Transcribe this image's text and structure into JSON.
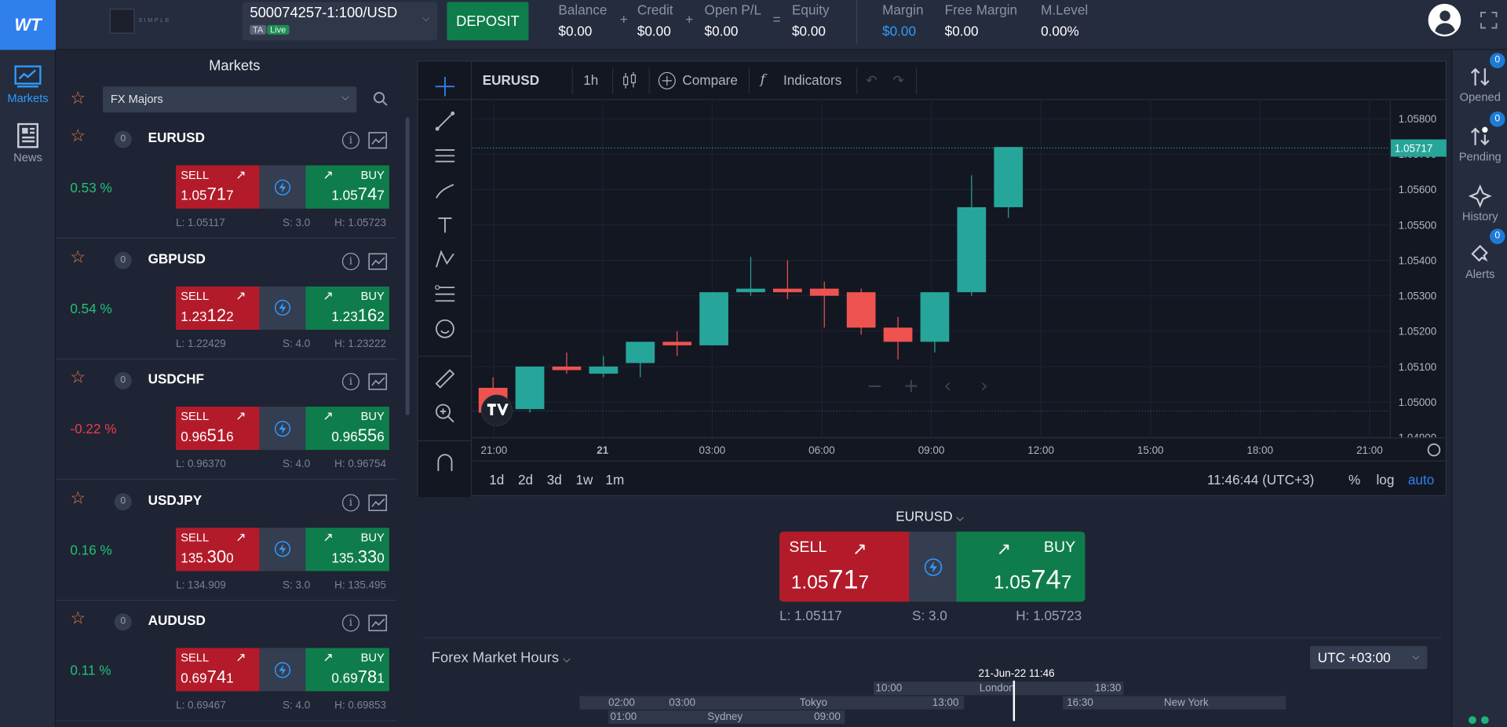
{
  "header": {
    "logo_text": "WT",
    "brand_text": "SIMPLE",
    "account": {
      "number": "500074257-1:100/USD",
      "tag_ta": "TA",
      "tag_live": "Live"
    },
    "deposit_label": "DEPOSIT",
    "stats": [
      {
        "label": "Balance",
        "value": "$0.00"
      },
      {
        "label": "Credit",
        "value": "$0.00"
      },
      {
        "label": "Open P/L",
        "value": "$0.00"
      },
      {
        "label": "Equity",
        "value": "$0.00"
      },
      {
        "label": "Margin",
        "value": "$0.00"
      },
      {
        "label": "Free Margin",
        "value": "$0.00"
      },
      {
        "label": "M.Level",
        "value": "0.00%"
      }
    ],
    "ops": [
      "+",
      "+",
      "="
    ]
  },
  "left_rail": {
    "markets_label": "Markets",
    "news_label": "News"
  },
  "markets": {
    "title": "Markets",
    "filter": "FX Majors",
    "instruments": [
      {
        "symbol": "EURUSD",
        "count": "0",
        "change": "0.53 %",
        "up": true,
        "sell_pre": "1.05",
        "sell_big": "71",
        "sell_post": "7",
        "buy_pre": "1.05",
        "buy_big": "74",
        "buy_post": "7",
        "low": "L: 1.05117",
        "spread": "S: 3.0",
        "high": "H: 1.05723"
      },
      {
        "symbol": "GBPUSD",
        "count": "0",
        "change": "0.54 %",
        "up": true,
        "sell_pre": "1.23",
        "sell_big": "12",
        "sell_post": "2",
        "buy_pre": "1.23",
        "buy_big": "16",
        "buy_post": "2",
        "low": "L: 1.22429",
        "spread": "S: 4.0",
        "high": "H: 1.23222"
      },
      {
        "symbol": "USDCHF",
        "count": "0",
        "change": "-0.22 %",
        "up": false,
        "sell_pre": "0.96",
        "sell_big": "51",
        "sell_post": "6",
        "buy_pre": "0.96",
        "buy_big": "55",
        "buy_post": "6",
        "low": "L: 0.96370",
        "spread": "S: 4.0",
        "high": "H: 0.96754"
      },
      {
        "symbol": "USDJPY",
        "count": "0",
        "change": "0.16 %",
        "up": true,
        "sell_pre": "135.",
        "sell_big": "30",
        "sell_post": "0",
        "buy_pre": "135.",
        "buy_big": "33",
        "buy_post": "0",
        "low": "L: 134.909",
        "spread": "S: 3.0",
        "high": "H: 135.495"
      },
      {
        "symbol": "AUDUSD",
        "count": "0",
        "change": "0.11 %",
        "up": true,
        "sell_pre": "0.69",
        "sell_big": "74",
        "sell_post": "1",
        "buy_pre": "0.69",
        "buy_big": "78",
        "buy_post": "1",
        "low": "L: 0.69467",
        "spread": "S: 4.0",
        "high": "H: 0.69853"
      }
    ],
    "sell_label": "SELL",
    "buy_label": "BUY"
  },
  "chart_toolbar": {
    "symbol": "EURUSD",
    "interval": "1h",
    "compare": "Compare",
    "indicators": "Indicators"
  },
  "chart_data": {
    "type": "candlestick",
    "symbol": "EURUSD",
    "interval": "1h",
    "y_ticks": [
      "1.05800",
      "1.05700",
      "1.05600",
      "1.05500",
      "1.05400",
      "1.05300",
      "1.05200",
      "1.05100",
      "1.05000",
      "1.04900"
    ],
    "ylim": [
      1.049,
      1.0585
    ],
    "x_ticks": [
      "21:00",
      "21",
      "03:00",
      "06:00",
      "09:00",
      "12:00",
      "15:00",
      "18:00",
      "21:00"
    ],
    "last_price_label": "1.05717",
    "last_price": 1.05717,
    "candles": [
      {
        "o": 1.0504,
        "h": 1.0507,
        "l": 1.0497,
        "c": 1.0497
      },
      {
        "o": 1.0498,
        "h": 1.051,
        "l": 1.0497,
        "c": 1.051
      },
      {
        "o": 1.051,
        "h": 1.0514,
        "l": 1.0508,
        "c": 1.0509
      },
      {
        "o": 1.0508,
        "h": 1.0513,
        "l": 1.0507,
        "c": 1.051
      },
      {
        "o": 1.0511,
        "h": 1.0517,
        "l": 1.0507,
        "c": 1.0517
      },
      {
        "o": 1.0517,
        "h": 1.052,
        "l": 1.0513,
        "c": 1.0516
      },
      {
        "o": 1.0516,
        "h": 1.0531,
        "l": 1.0516,
        "c": 1.0531
      },
      {
        "o": 1.0531,
        "h": 1.0541,
        "l": 1.053,
        "c": 1.0532
      },
      {
        "o": 1.0532,
        "h": 1.054,
        "l": 1.0529,
        "c": 1.0531
      },
      {
        "o": 1.0532,
        "h": 1.0534,
        "l": 1.0521,
        "c": 1.053
      },
      {
        "o": 1.0531,
        "h": 1.0532,
        "l": 1.0519,
        "c": 1.0521
      },
      {
        "o": 1.0521,
        "h": 1.0524,
        "l": 1.0512,
        "c": 1.0517
      },
      {
        "o": 1.0517,
        "h": 1.0531,
        "l": 1.0514,
        "c": 1.0531
      },
      {
        "o": 1.0531,
        "h": 1.0564,
        "l": 1.053,
        "c": 1.0555
      },
      {
        "o": 1.0555,
        "h": 1.0572,
        "l": 1.0552,
        "c": 1.0572
      }
    ]
  },
  "chart_bottom": {
    "ranges": [
      "1d",
      "2d",
      "3d",
      "1w",
      "1m"
    ],
    "clock": "11:46:44 (UTC+3)",
    "pct": "%",
    "log": "log",
    "auto": "auto"
  },
  "quick_trade": {
    "symbol": "EURUSD",
    "sell_label": "SELL",
    "buy_label": "BUY",
    "sell_pre": "1.05",
    "sell_big": "71",
    "sell_post": "7",
    "buy_pre": "1.05",
    "buy_big": "74",
    "buy_post": "7",
    "low": "L: 1.05117",
    "spread": "S: 3.0",
    "high": "H: 1.05723"
  },
  "forex_hours": {
    "title": "Forex Market Hours",
    "timezone": "UTC +03:00",
    "now": "21-Jun-22 11:46",
    "sessions": [
      {
        "name": "London",
        "open": "10:00",
        "close": "18:30"
      },
      {
        "name": "Tokyo",
        "open": "03:00",
        "close": "13:00"
      },
      {
        "name": "New York",
        "open": "16:30",
        "close": ""
      },
      {
        "name": "Sydney",
        "open": "01:00",
        "close": "09:00"
      }
    ],
    "extra_open": "02:00"
  },
  "right_rail": {
    "opened": {
      "label": "Opened",
      "badge": "0"
    },
    "pending": {
      "label": "Pending",
      "badge": "0"
    },
    "history": {
      "label": "History"
    },
    "alerts": {
      "label": "Alerts",
      "badge": "0"
    }
  },
  "colors": {
    "up": "#26a69a",
    "down": "#ef5350",
    "sell": "#b31b2a",
    "buy": "#0f7d4b",
    "accent": "#2f80ed"
  }
}
